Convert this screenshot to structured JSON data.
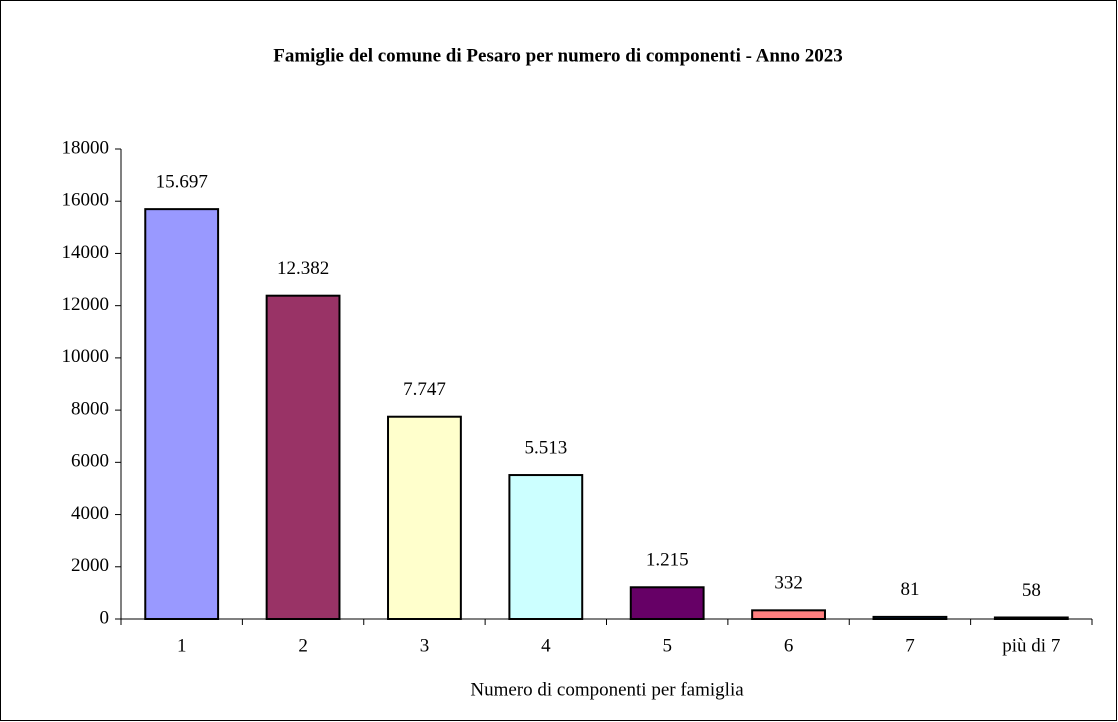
{
  "chart_data": {
    "type": "bar",
    "title": "Famiglie del comune di Pesaro per numero di componenti  - Anno 2023",
    "x_label": "Numero di componenti per famiglia",
    "categories": [
      "1",
      "2",
      "3",
      "4",
      "5",
      "6",
      "7",
      "più di 7"
    ],
    "values": [
      15697,
      12382,
      7747,
      5513,
      1215,
      332,
      81,
      58
    ],
    "value_labels": [
      "15.697",
      "12.382",
      "7.747",
      "5.513",
      "1.215",
      "332",
      "81",
      "58"
    ],
    "colors": [
      "#9999ff",
      "#993366",
      "#ffffcc",
      "#ccffff",
      "#660066",
      "#ff8080",
      "#0066cc",
      "#ccccff"
    ],
    "ylim": [
      0,
      18000
    ],
    "yticks": [
      0,
      2000,
      4000,
      6000,
      8000,
      10000,
      12000,
      14000,
      16000,
      18000
    ],
    "grid": false
  }
}
